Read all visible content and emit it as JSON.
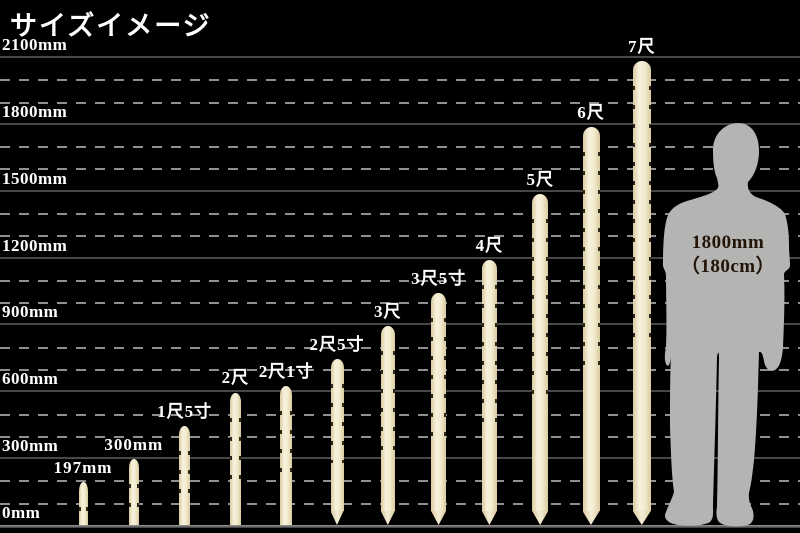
{
  "title": "サイズイメージ",
  "colors": {
    "background": "#000000",
    "text": "#ffffff",
    "stake_fill": "#f4edd5",
    "stake_edge": "#d9cba0",
    "grid_major": "#474747",
    "grid_minor": "#8f8f8f",
    "silhouette": "#b4b4b2",
    "figure_text": "#221407"
  },
  "chart_data": {
    "type": "bar",
    "title": "サイズイメージ",
    "unit": "mm",
    "xlabel": "",
    "ylabel": "height (mm)",
    "ylim": [
      0,
      2100
    ],
    "grid": "on",
    "axis": {
      "min_mm": 0,
      "max_mm": 2100,
      "major_step_mm": 300,
      "minor_step_mm": 100
    },
    "y_ticks": [
      {
        "label": "0mm",
        "mm": 0
      },
      {
        "label": "300mm",
        "mm": 300
      },
      {
        "label": "600mm",
        "mm": 600
      },
      {
        "label": "900mm",
        "mm": 900
      },
      {
        "label": "1200mm",
        "mm": 1200
      },
      {
        "label": "1500mm",
        "mm": 1500
      },
      {
        "label": "1800mm",
        "mm": 1800
      },
      {
        "label": "2100mm",
        "mm": 2100
      }
    ],
    "categories": [
      "197mm",
      "300mm",
      "1尺5寸",
      "2尺",
      "2尺1寸",
      "2尺5寸",
      "3尺",
      "3尺5寸",
      "4尺",
      "5尺",
      "6尺",
      "7尺"
    ],
    "values_mm": [
      197,
      300,
      455,
      606,
      636,
      758,
      909,
      1061,
      1212,
      1515,
      1818,
      2121
    ],
    "stakes": [
      {
        "label": "197mm",
        "height_mm": 197,
        "pointed_bottom": false
      },
      {
        "label": "300mm",
        "height_mm": 300,
        "pointed_bottom": false
      },
      {
        "label": "1尺5寸",
        "height_mm": 455,
        "pointed_bottom": false
      },
      {
        "label": "2尺",
        "height_mm": 606,
        "pointed_bottom": false
      },
      {
        "label": "2尺1寸",
        "height_mm": 636,
        "pointed_bottom": false
      },
      {
        "label": "2尺5寸",
        "height_mm": 758,
        "pointed_bottom": true
      },
      {
        "label": "3尺",
        "height_mm": 909,
        "pointed_bottom": true
      },
      {
        "label": "3尺5寸",
        "height_mm": 1061,
        "pointed_bottom": true
      },
      {
        "label": "4尺",
        "height_mm": 1212,
        "pointed_bottom": true
      },
      {
        "label": "5尺",
        "height_mm": 1515,
        "pointed_bottom": true
      },
      {
        "label": "6尺",
        "height_mm": 1818,
        "pointed_bottom": true
      },
      {
        "label": "7尺",
        "height_mm": 2121,
        "pointed_bottom": true
      }
    ],
    "figure": {
      "label_line1": "1800mm",
      "label_line2": "（180cm）",
      "height_mm": 1800
    }
  }
}
